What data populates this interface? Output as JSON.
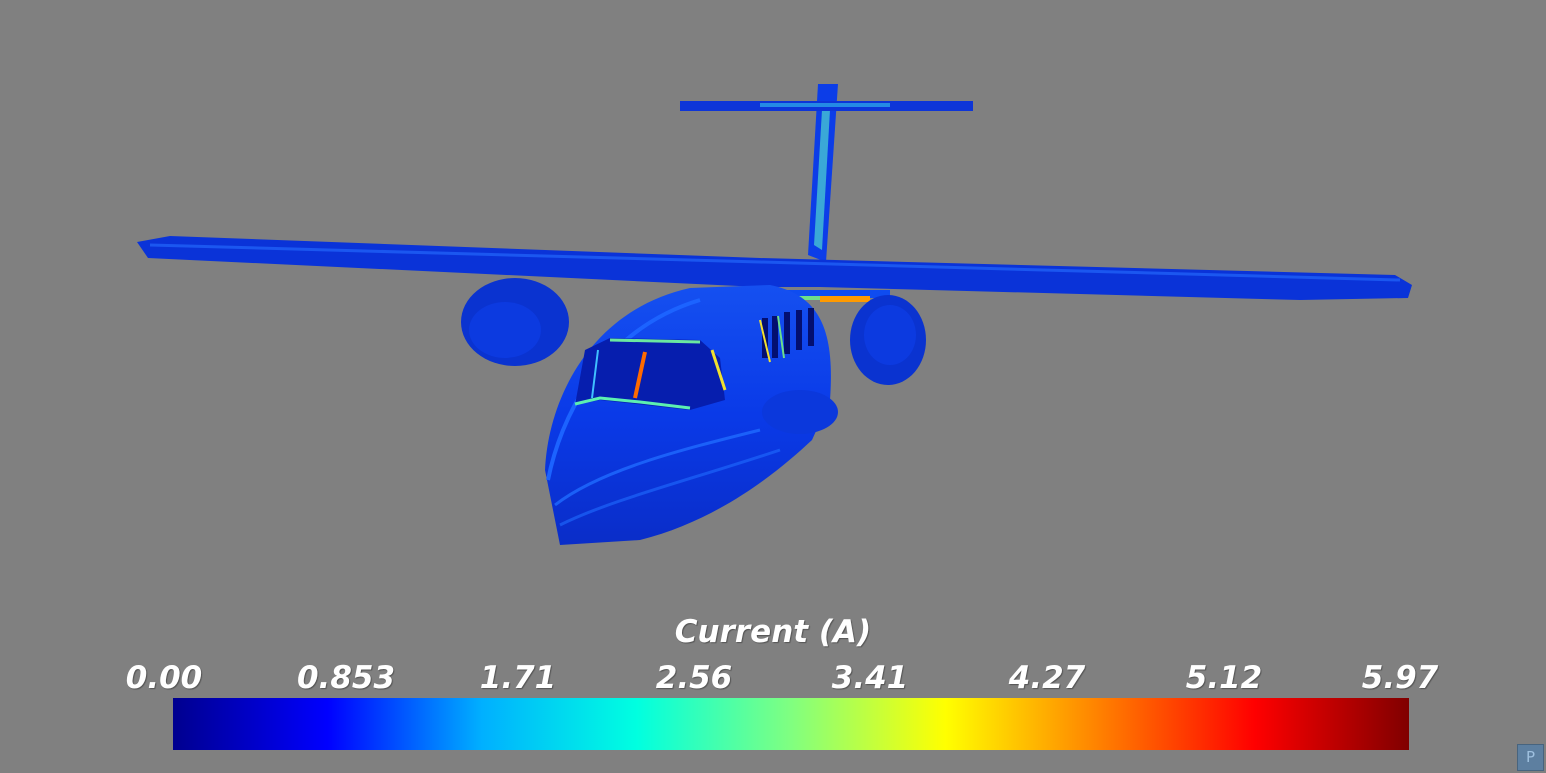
{
  "viewport": {
    "background": "#808080",
    "object": "aircraft-model"
  },
  "colorbar": {
    "title": "Current (A)",
    "ticks": [
      "0.00",
      "0.853",
      "1.71",
      "2.56",
      "3.41",
      "4.27",
      "5.12",
      "5.97"
    ],
    "range": [
      0.0,
      5.97
    ],
    "colormap": "jet",
    "stops": [
      "#00008f",
      "#0000ff",
      "#00b0ff",
      "#00ffe0",
      "#80ff80",
      "#ffff00",
      "#ff8000",
      "#ff0000",
      "#800000"
    ]
  },
  "corner_button": {
    "label": "P"
  }
}
